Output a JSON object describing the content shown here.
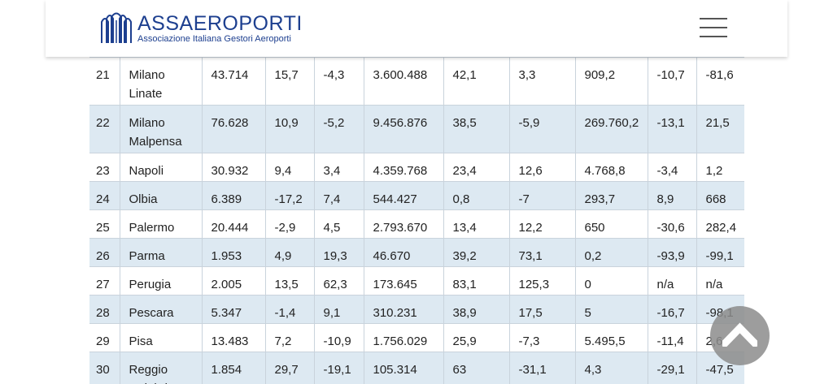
{
  "header": {
    "logo_name": "ASSAEROPORTI",
    "logo_subtitle": "Associazione Italiana Gestori Aeroporti",
    "menu_icon": "hamburger-menu-icon"
  },
  "scroll_top_icon": "chevron-up-icon",
  "colors": {
    "brand": "#1d3f8f",
    "row_alt": "#dde9f2"
  },
  "rows": [
    {
      "cells": [
        "21",
        "Milano Linate",
        "43.714",
        "15,7",
        "-4,3",
        "3.600.488",
        "42,1",
        "3,3",
        "909,2",
        "-10,7",
        "-81,6"
      ]
    },
    {
      "cells": [
        "22",
        "Milano Malpensa",
        "76.628",
        "10,9",
        "-5,2",
        "9.456.876",
        "38,5",
        "-5,9",
        "269.760,2",
        "-13,1",
        "21,5"
      ]
    },
    {
      "cells": [
        "23",
        "Napoli",
        "30.932",
        "9,4",
        "3,4",
        "4.359.768",
        "23,4",
        "12,6",
        "4.768,8",
        "-3,4",
        "1,2"
      ]
    },
    {
      "cells": [
        "24",
        "Olbia",
        "6.389",
        "-17,2",
        "7,4",
        "544.427",
        "0,8",
        "-7",
        "293,7",
        "8,9",
        "668"
      ]
    },
    {
      "cells": [
        "25",
        "Palermo",
        "20.444",
        "-2,9",
        "4,5",
        "2.793.670",
        "13,4",
        "12,2",
        "650",
        "-30,6",
        "282,4"
      ]
    },
    {
      "cells": [
        "26",
        "Parma",
        "1.953",
        "4,9",
        "19,3",
        "46.670",
        "39,2",
        "73,1",
        "0,2",
        "-93,9",
        "-99,1"
      ]
    },
    {
      "cells": [
        "27",
        "Perugia",
        "2.005",
        "13,5",
        "62,3",
        "173.645",
        "83,1",
        "125,3",
        "0",
        "n/a",
        "n/a"
      ]
    },
    {
      "cells": [
        "28",
        "Pescara",
        "5.347",
        "-1,4",
        "9,1",
        "310.231",
        "38,9",
        "17,5",
        "5",
        "-16,7",
        "-98,1"
      ]
    },
    {
      "cells": [
        "29",
        "Pisa",
        "13.483",
        "7,2",
        "-10,9",
        "1.756.029",
        "25,9",
        "-7,3",
        "5.495,5",
        "-11,4",
        "2,6"
      ]
    },
    {
      "cells": [
        "30",
        "Reggio Calabria",
        "1.854",
        "29,7",
        "-19,1",
        "105.314",
        "63",
        "-31,1",
        "4,3",
        "-29,1",
        "-47,5"
      ]
    }
  ]
}
